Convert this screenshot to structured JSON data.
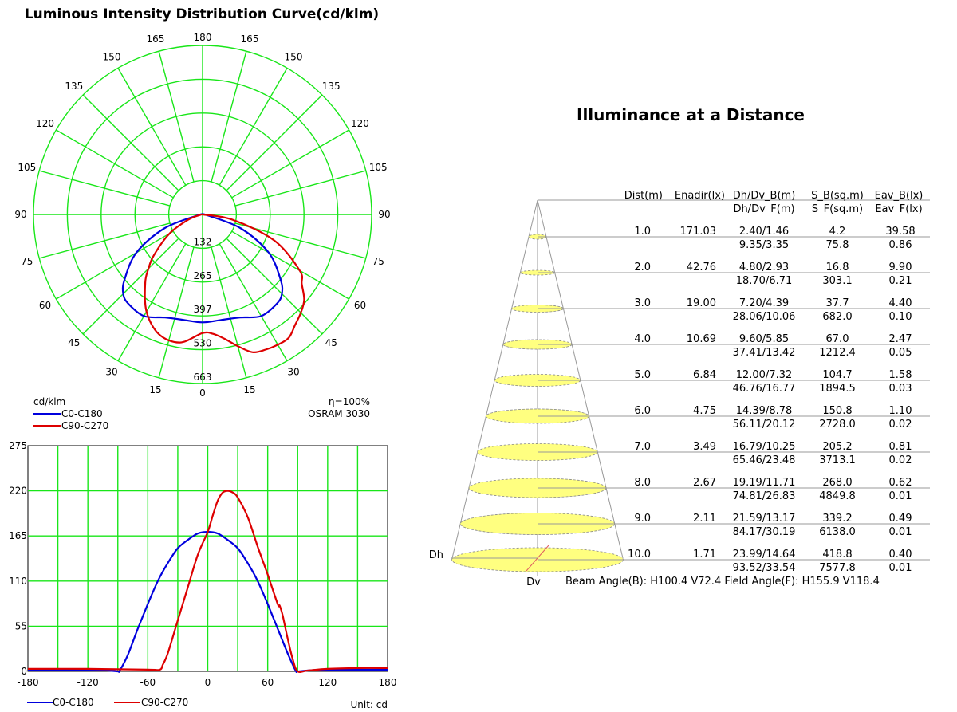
{
  "polar": {
    "title": "Luminous Intensity Distribution Curve(cd/klm)",
    "unit_label": "cd/klm",
    "efficiency": "η=100%",
    "product": "OSRAM 3030",
    "angle_labels_top": "180",
    "angle_labels_bottom": "0",
    "angle_labels_left": [
      "165",
      "150",
      "135",
      "120",
      "105",
      "90",
      "75",
      "60",
      "45",
      "30",
      "15"
    ],
    "angle_labels_right": [
      "165",
      "150",
      "135",
      "120",
      "105",
      "90",
      "75",
      "60",
      "45",
      "30",
      "15"
    ],
    "radial_labels": [
      "132",
      "265",
      "397",
      "530",
      "663"
    ]
  },
  "legend": {
    "c0": "C0-C180",
    "c90": "C90-C270"
  },
  "cartesian": {
    "unit": "Unit: cd"
  },
  "illuminance": {
    "title": "Illuminance at a Distance",
    "headers1": [
      "Dist(m)",
      "Enadir(lx)",
      "Dh/Dv_B(m)",
      "S_B(sq.m)",
      "Eav_B(lx)"
    ],
    "headers2": [
      "Dh/Dv_F(m)",
      "S_F(sq.m)",
      "Eav_F(lx)"
    ],
    "rows": [
      {
        "dist": "1.0",
        "enadir": "171.03",
        "dhdv_b": "2.40/1.46",
        "s_b": "4.2",
        "eav_b": "39.58",
        "dhdv_f": "9.35/3.35",
        "s_f": "75.8",
        "eav_f": "0.86"
      },
      {
        "dist": "2.0",
        "enadir": "42.76",
        "dhdv_b": "4.80/2.93",
        "s_b": "16.8",
        "eav_b": "9.90",
        "dhdv_f": "18.70/6.71",
        "s_f": "303.1",
        "eav_f": "0.21"
      },
      {
        "dist": "3.0",
        "enadir": "19.00",
        "dhdv_b": "7.20/4.39",
        "s_b": "37.7",
        "eav_b": "4.40",
        "dhdv_f": "28.06/10.06",
        "s_f": "682.0",
        "eav_f": "0.10"
      },
      {
        "dist": "4.0",
        "enadir": "10.69",
        "dhdv_b": "9.60/5.85",
        "s_b": "67.0",
        "eav_b": "2.47",
        "dhdv_f": "37.41/13.42",
        "s_f": "1212.4",
        "eav_f": "0.05"
      },
      {
        "dist": "5.0",
        "enadir": "6.84",
        "dhdv_b": "12.00/7.32",
        "s_b": "104.7",
        "eav_b": "1.58",
        "dhdv_f": "46.76/16.77",
        "s_f": "1894.5",
        "eav_f": "0.03"
      },
      {
        "dist": "6.0",
        "enadir": "4.75",
        "dhdv_b": "14.39/8.78",
        "s_b": "150.8",
        "eav_b": "1.10",
        "dhdv_f": "56.11/20.12",
        "s_f": "2728.0",
        "eav_f": "0.02"
      },
      {
        "dist": "7.0",
        "enadir": "3.49",
        "dhdv_b": "16.79/10.25",
        "s_b": "205.2",
        "eav_b": "0.81",
        "dhdv_f": "65.46/23.48",
        "s_f": "3713.1",
        "eav_f": "0.02"
      },
      {
        "dist": "8.0",
        "enadir": "2.67",
        "dhdv_b": "19.19/11.71",
        "s_b": "268.0",
        "eav_b": "0.62",
        "dhdv_f": "74.81/26.83",
        "s_f": "4849.8",
        "eav_f": "0.01"
      },
      {
        "dist": "9.0",
        "enadir": "2.11",
        "dhdv_b": "21.59/13.17",
        "s_b": "339.2",
        "eav_b": "0.49",
        "dhdv_f": "84.17/30.19",
        "s_f": "6138.0",
        "eav_f": "0.01"
      },
      {
        "dist": "10.0",
        "enadir": "1.71",
        "dhdv_b": "23.99/14.64",
        "s_b": "418.8",
        "eav_b": "0.40",
        "dhdv_f": "93.52/33.54",
        "s_f": "7577.8",
        "eav_f": "0.01"
      }
    ],
    "dh_label": "Dh",
    "dv_label": "Dv",
    "beam_text": "Beam Angle(B): H100.4 V72.4  Field Angle(F): H155.9 V118.4"
  },
  "colors": {
    "grid": "#19e619",
    "c0": "#0000dd",
    "c90": "#dd0000",
    "cone_fill": "#ffff80",
    "cone_stroke": "#999999"
  },
  "chart_data": [
    {
      "type": "polar",
      "title": "Luminous Intensity Distribution Curve(cd/klm)",
      "unit": "cd/klm",
      "rmax": 663,
      "radial_ticks": [
        132,
        265,
        397,
        530,
        663
      ],
      "angle_ticks_deg": [
        0,
        15,
        30,
        45,
        60,
        75,
        90,
        105,
        120,
        135,
        150,
        165,
        180
      ],
      "series": [
        {
          "name": "C0-C180",
          "angles": [
            -90,
            -80,
            -70,
            -60,
            -50,
            -45,
            -40,
            -30,
            -20,
            -10,
            0,
            10,
            20,
            30,
            40,
            45,
            50,
            60,
            70,
            80,
            90
          ],
          "values": [
            0,
            20,
            160,
            300,
            400,
            440,
            455,
            460,
            430,
            420,
            423,
            420,
            430,
            460,
            455,
            440,
            400,
            300,
            160,
            20,
            0
          ]
        },
        {
          "name": "C90-C270",
          "angles": [
            -90,
            -80,
            -70,
            -60,
            -50,
            -45,
            -40,
            -30,
            -20,
            -10,
            0,
            5,
            10,
            15,
            20,
            25,
            30,
            35,
            40,
            45,
            50,
            55,
            60,
            70,
            80,
            90
          ],
          "values": [
            0,
            10,
            60,
            150,
            250,
            300,
            350,
            440,
            500,
            510,
            465,
            470,
            495,
            535,
            575,
            585,
            590,
            590,
            565,
            545,
            520,
            475,
            440,
            300,
            120,
            0
          ]
        }
      ]
    },
    {
      "type": "line",
      "unit": "Unit: cd",
      "xlim": [
        -180,
        180
      ],
      "ylim": [
        0,
        275
      ],
      "xticks": [
        -180,
        -120,
        -60,
        0,
        60,
        120,
        180
      ],
      "yticks": [
        0,
        55,
        110,
        165,
        220,
        275
      ],
      "series": [
        {
          "name": "C0-C180",
          "x": [
            -180,
            -120,
            -100,
            -90,
            -88,
            -80,
            -70,
            -60,
            -50,
            -40,
            -30,
            -20,
            -10,
            0,
            10,
            20,
            30,
            40,
            50,
            60,
            70,
            80,
            88,
            90,
            100,
            120,
            180
          ],
          "y": [
            2,
            2,
            1,
            0,
            1,
            20,
            52,
            82,
            110,
            132,
            150,
            160,
            168,
            170,
            168,
            160,
            150,
            132,
            110,
            82,
            52,
            22,
            1,
            0,
            1,
            2,
            2
          ]
        },
        {
          "name": "C90-C270",
          "x": [
            -180,
            -120,
            -60,
            -48,
            -45,
            -40,
            -30,
            -20,
            -10,
            0,
            5,
            10,
            15,
            20,
            25,
            30,
            40,
            50,
            60,
            70,
            72,
            75,
            80,
            85,
            90,
            100,
            120,
            150,
            180
          ],
          "y": [
            3,
            3,
            2,
            2,
            8,
            22,
            62,
            102,
            142,
            170,
            190,
            208,
            218,
            220,
            218,
            212,
            188,
            152,
            118,
            82,
            80,
            68,
            40,
            15,
            0,
            1,
            3,
            4,
            4
          ]
        }
      ]
    },
    {
      "type": "table",
      "title": "Illuminance at a Distance",
      "columns": [
        "Dist(m)",
        "Enadir(lx)",
        "Dh/Dv_B(m)",
        "S_B(sq.m)",
        "Eav_B(lx)",
        "Dh/Dv_F(m)",
        "S_F(sq.m)",
        "Eav_F(lx)"
      ],
      "dist": [
        1,
        2,
        3,
        4,
        5,
        6,
        7,
        8,
        9,
        10
      ]
    }
  ]
}
